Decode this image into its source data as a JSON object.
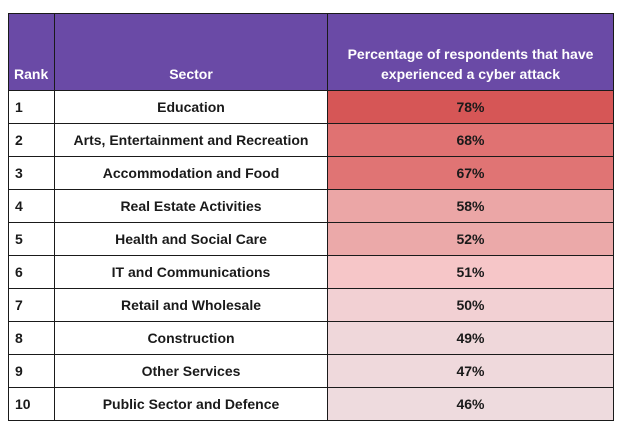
{
  "chart_data": {
    "type": "table",
    "columns": [
      "Rank",
      "Sector",
      "Percentage of respondents that have experienced a cyber attack"
    ],
    "rows": [
      {
        "rank": "1",
        "sector": "Education",
        "pct": "78%",
        "value": 78,
        "color": "#d65656"
      },
      {
        "rank": "2",
        "sector": "Arts, Entertainment and Recreation",
        "pct": "68%",
        "value": 68,
        "color": "#e07272"
      },
      {
        "rank": "3",
        "sector": "Accommodation and Food",
        "pct": "67%",
        "value": 67,
        "color": "#e07474"
      },
      {
        "rank": "4",
        "sector": "Real Estate Activities",
        "pct": "58%",
        "value": 58,
        "color": "#eba6a6"
      },
      {
        "rank": "5",
        "sector": "Health and Social Care",
        "pct": "52%",
        "value": 52,
        "color": "#eba9a9"
      },
      {
        "rank": "6",
        "sector": "IT and Communications",
        "pct": "51%",
        "value": 51,
        "color": "#f6c6c8"
      },
      {
        "rank": "7",
        "sector": "Retail and Wholesale",
        "pct": "50%",
        "value": 50,
        "color": "#f2d0d3"
      },
      {
        "rank": "8",
        "sector": "Construction",
        "pct": "49%",
        "value": 49,
        "color": "#efd7da"
      },
      {
        "rank": "9",
        "sector": "Other Services",
        "pct": "47%",
        "value": 47,
        "color": "#efd9dc"
      },
      {
        "rank": "10",
        "sector": "Public Sector and Defence",
        "pct": "46%",
        "value": 46,
        "color": "#eedbde"
      }
    ]
  },
  "header": {
    "rank": "Rank",
    "sector": "Sector",
    "pct_line1": "Percentage of respondents that have",
    "pct_line2": "experienced a cyber attack"
  },
  "colors": {
    "header_bg": "#6a4aa6",
    "header_text": "#ffffff",
    "border": "#1a1a1a"
  }
}
